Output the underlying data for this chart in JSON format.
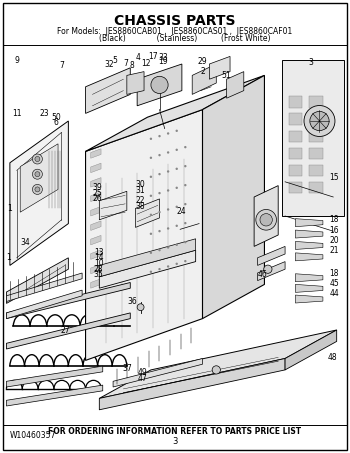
{
  "title": "CHASSIS PARTS",
  "subtitle_line1": "For Models:  JES8860CAB01 ,  JES8860CAS01 ,  JES8860CAF01",
  "subtitle_line2": "(Black)           (Stainless)        (Frost White)",
  "footer_left": "W10460357",
  "footer_center": "FOR ORDERING INFORMATION REFER TO PARTS PRICE LIST",
  "footer_page": "3",
  "bg_color": "#ffffff",
  "title_fontsize": 10,
  "subtitle_fontsize": 5.5,
  "footer_fontsize": 5.5
}
